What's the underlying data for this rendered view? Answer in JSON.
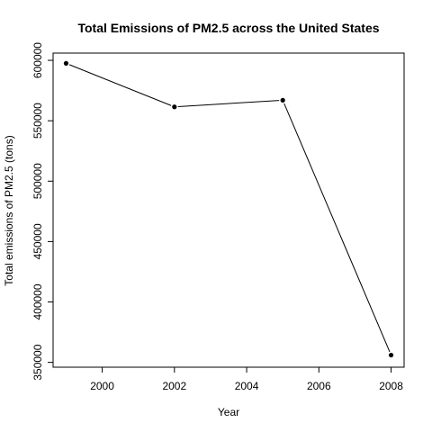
{
  "chart_data": {
    "type": "line",
    "title": "Total Emissions of PM2.5 across the United States",
    "xlabel": "Year",
    "ylabel": "Total emissions of PM2.5 (tons)",
    "x": [
      1999,
      2002,
      2005,
      2008
    ],
    "series": [
      {
        "values": [
          597500,
          561500,
          567000,
          356000
        ]
      }
    ],
    "xlim": [
      1998.64,
      2008.36
    ],
    "ylim": [
      346000,
      606000
    ],
    "xticks": [
      2000,
      2002,
      2004,
      2006,
      2008
    ],
    "yticks": [
      350000,
      400000,
      450000,
      500000,
      550000,
      600000
    ],
    "xtick_labels": [
      "2000",
      "2002",
      "2004",
      "2006",
      "2008"
    ],
    "ytick_labels": [
      "350000",
      "400000",
      "450000",
      "500000",
      "550000",
      "600000"
    ],
    "grid": false,
    "legend": "none",
    "line_color": "#000000",
    "marker": "filled-circle"
  }
}
